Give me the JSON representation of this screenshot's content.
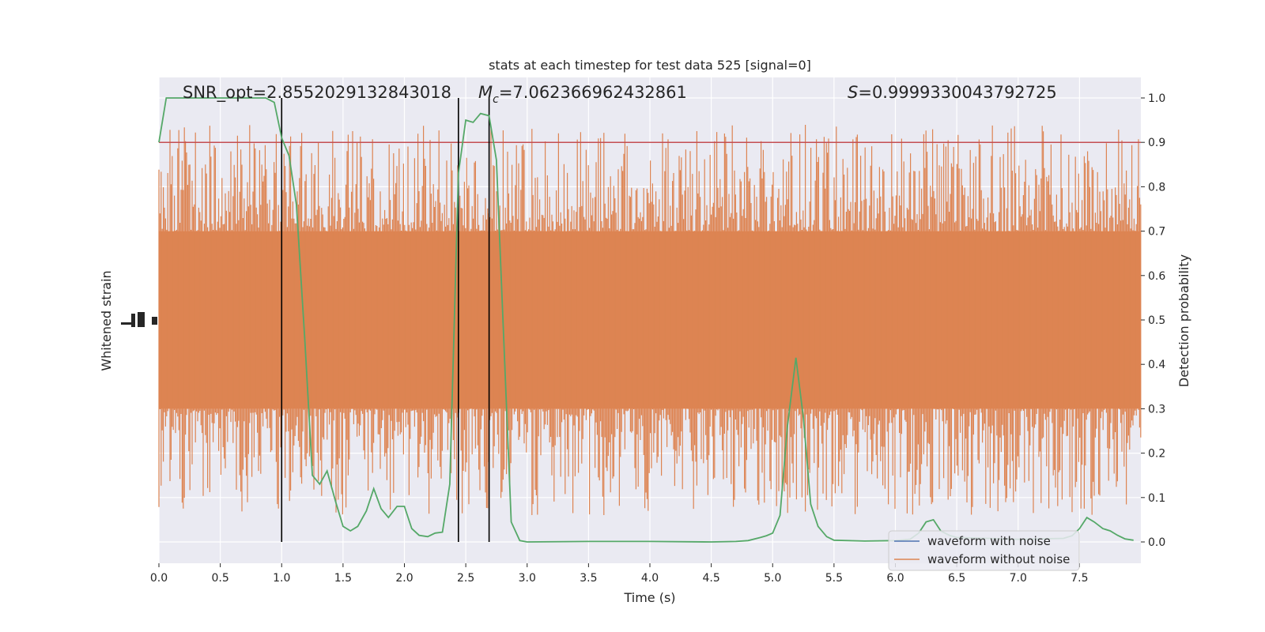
{
  "chart_data": {
    "type": "line",
    "title": "stats at each timestep for test data 525 [signal=0]",
    "xlabel": "Time (s)",
    "ylabel_left": "Whitened strain",
    "ylabel_right": "Detection probability",
    "xlim": [
      0.0,
      8.0
    ],
    "ylim_right": [
      -0.05,
      1.05
    ],
    "xticks": [
      "0.0",
      "0.5",
      "1.0",
      "1.5",
      "2.0",
      "2.5",
      "3.0",
      "3.5",
      "4.0",
      "4.5",
      "5.0",
      "5.5",
      "6.0",
      "6.5",
      "7.0",
      "7.5"
    ],
    "yticks_right": [
      "0.0",
      "0.1",
      "0.2",
      "0.3",
      "0.4",
      "0.5",
      "0.6",
      "0.7",
      "0.8",
      "0.9",
      "1.0"
    ],
    "annotations": {
      "snr": "SNR_opt=2.8552029132843018",
      "mc_symbol": "M",
      "mc_sub": "c",
      "mc_value": "=7.062366962432861",
      "s_symbol": "S",
      "s_value": "=0.9999330043792725"
    },
    "threshold": 0.9,
    "vlines": [
      1.0,
      2.44,
      2.69
    ],
    "legend": {
      "position": "lower right",
      "entries": [
        "waveform with noise",
        "waveform without noise"
      ]
    },
    "series": [
      {
        "name": "waveform with noise",
        "color": "#4c72b0",
        "values": []
      },
      {
        "name": "waveform without noise",
        "color": "#dd8452",
        "noise_band": [
          0.3,
          0.7
        ],
        "spike_range": [
          0.0,
          1.0
        ]
      },
      {
        "color": "#55a868",
        "x": [
          0.0,
          0.06,
          0.12,
          0.19,
          0.25,
          0.31,
          0.37,
          0.44,
          0.5,
          0.56,
          0.62,
          0.69,
          0.75,
          0.81,
          0.87,
          0.94,
          1.0,
          1.06,
          1.12,
          1.19,
          1.25,
          1.31,
          1.37,
          1.44,
          1.5,
          1.56,
          1.62,
          1.69,
          1.75,
          1.81,
          1.87,
          1.94,
          2.0,
          2.06,
          2.12,
          2.19,
          2.25,
          2.31,
          2.37,
          2.44,
          2.5,
          2.56,
          2.62,
          2.69,
          2.75,
          2.81,
          2.87,
          2.94,
          3.0,
          3.5,
          4.0,
          4.5,
          4.7,
          4.8,
          4.9,
          4.95,
          5.0,
          5.06,
          5.12,
          5.19,
          5.25,
          5.31,
          5.37,
          5.44,
          5.5,
          5.75,
          6.0,
          6.12,
          6.19,
          6.25,
          6.31,
          6.37,
          6.44,
          6.5,
          7.0,
          7.37,
          7.44,
          7.5,
          7.56,
          7.62,
          7.69,
          7.75,
          7.81,
          7.87,
          7.94
        ],
        "values": [
          0.9,
          1.0,
          1.0,
          1.0,
          1.0,
          1.0,
          1.0,
          1.0,
          1.0,
          1.0,
          1.0,
          1.0,
          1.0,
          1.0,
          1.0,
          0.99,
          0.91,
          0.87,
          0.76,
          0.45,
          0.15,
          0.13,
          0.16,
          0.09,
          0.035,
          0.025,
          0.035,
          0.07,
          0.12,
          0.075,
          0.055,
          0.08,
          0.08,
          0.03,
          0.015,
          0.012,
          0.02,
          0.022,
          0.13,
          0.83,
          0.95,
          0.945,
          0.965,
          0.96,
          0.86,
          0.45,
          0.045,
          0.003,
          0.0,
          0.001,
          0.001,
          0.0,
          0.001,
          0.003,
          0.01,
          0.014,
          0.02,
          0.06,
          0.26,
          0.415,
          0.28,
          0.085,
          0.035,
          0.012,
          0.004,
          0.002,
          0.003,
          0.006,
          0.02,
          0.045,
          0.05,
          0.025,
          0.015,
          0.01,
          0.006,
          0.008,
          0.014,
          0.03,
          0.055,
          0.045,
          0.03,
          0.025,
          0.015,
          0.007,
          0.004
        ]
      }
    ]
  }
}
